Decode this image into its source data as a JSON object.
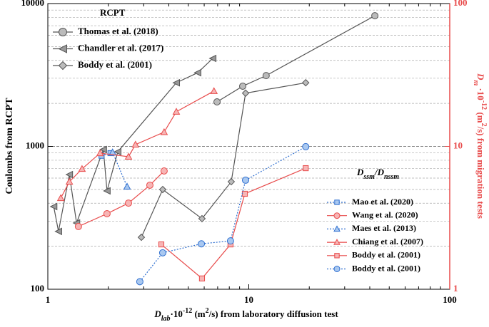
{
  "chart_data": {
    "type": "line",
    "log_x": true,
    "log_y": true,
    "grid": true,
    "xlim": [
      1,
      100
    ],
    "xticks": [
      1,
      10,
      100
    ],
    "ylim": [
      100,
      10000
    ],
    "yticks": [
      100,
      1000,
      10000
    ],
    "y2lim": [
      1,
      100
    ],
    "y2ticks": [
      1,
      10,
      100
    ],
    "xlabel_parts": [
      {
        "text": "D",
        "style": "italic"
      },
      {
        "text": "lab",
        "style": "sub"
      },
      {
        "text": "·10",
        "style": "normal"
      },
      {
        "text": "-12",
        "style": "sup"
      },
      {
        "text": " (m",
        "style": "normal"
      },
      {
        "text": "2",
        "style": "sup"
      },
      {
        "text": "/s) from laboratory diffusion test",
        "style": "normal"
      }
    ],
    "ylabel": "Coulombs from RCPT",
    "y2label_parts": [
      {
        "text": "D",
        "style": "italic"
      },
      {
        "text": "m",
        "style": "sub"
      },
      {
        "text": " ·10",
        "style": "normal"
      },
      {
        "text": "-12",
        "style": "sup"
      },
      {
        "text": " (m",
        "style": "normal"
      },
      {
        "text": "2",
        "style": "sup"
      },
      {
        "text": "/s) from migration tests",
        "style": "normal"
      }
    ],
    "legend1_title": "RCPT",
    "legend2_title_parts": [
      {
        "text": "D",
        "style": "italic"
      },
      {
        "text": "ssm",
        "style": "sub"
      },
      {
        "text": "/D",
        "style": "italic"
      },
      {
        "text": "nssm",
        "style": "sub"
      }
    ],
    "series": [
      {
        "name": "Thomas et al. (2018)",
        "legend": 1,
        "color": "#555555",
        "marker_fill": "#bbbbbb",
        "marker": "circle",
        "dash": "solid",
        "x": [
          6.95,
          9.33,
          12.2,
          42.4
        ],
        "y": [
          2050,
          2640,
          3130,
          8220
        ]
      },
      {
        "name": "Chandler et al. (2017)",
        "legend": 1,
        "color": "#555555",
        "marker_fill": "#999999",
        "marker": "triangle-left",
        "dash": "solid",
        "x": [
          1.07,
          1.13,
          1.28,
          1.39,
          1.89,
          1.97,
          2.23,
          4.36,
          5.57,
          6.62
        ],
        "y": [
          379,
          254,
          635,
          291,
          951,
          488,
          918,
          2790,
          3280,
          4130
        ]
      },
      {
        "name": "Boddy et al. (2001)",
        "legend": 1,
        "color": "#555555",
        "marker_fill": "#bbbbbb",
        "marker": "diamond",
        "dash": "solid",
        "x": [
          2.92,
          3.73,
          5.85,
          8.18,
          9.64,
          19.2
        ],
        "y": [
          231,
          499,
          312,
          566,
          2360,
          2790
        ]
      },
      {
        "name": "Mao et al. (2020)",
        "legend": 2,
        "axis": "y2",
        "color": "#2f6fd0",
        "marker_fill": "#a9c8f0",
        "marker": "square",
        "dash": "dotted",
        "x": [
          1.85,
          2.05
        ],
        "y": [
          8.6,
          8.97
        ]
      },
      {
        "name": "Wang et al. (2020)",
        "legend": 2,
        "axis": "y2",
        "color": "#e84c4c",
        "marker_fill": "#f7b5b5",
        "marker": "circle",
        "dash": "solid",
        "x": [
          1.42,
          1.97,
          2.52,
          3.22,
          3.79
        ],
        "y": [
          2.75,
          3.38,
          4.01,
          5.35,
          6.73
        ]
      },
      {
        "name": "Maes et al. (2013)",
        "legend": 2,
        "axis": "y2",
        "color": "#2f6fd0",
        "marker_fill": "#a9c8f0",
        "marker": "triangle-up",
        "dash": "dotted",
        "x": [
          2.1,
          2.48
        ],
        "y": [
          9.1,
          5.23
        ]
      },
      {
        "name": "Chiang et al. (2007)",
        "legend": 2,
        "axis": "y2",
        "color": "#e84c4c",
        "marker_fill": "#f7b5b5",
        "marker": "triangle-up",
        "dash": "solid",
        "x": [
          1.16,
          1.28,
          1.48,
          1.82,
          2.52,
          2.73,
          3.79,
          4.36,
          6.71
        ],
        "y": [
          4.35,
          5.66,
          6.96,
          8.97,
          8.47,
          10.3,
          12.6,
          17.5,
          24.4
        ]
      },
      {
        "name": "Boddy et al. (2001)",
        "legend": 2,
        "axis": "y2",
        "color": "#e84c4c",
        "marker_fill": "#f7b5b5",
        "marker": "square",
        "dash": "solid",
        "x": [
          3.67,
          5.85,
          8.11,
          9.56,
          19.2
        ],
        "y": [
          2.06,
          1.19,
          2.06,
          4.66,
          7.04
        ]
      },
      {
        "name": "Boddy et al. (2001)",
        "legend": 2,
        "axis": "y2",
        "color": "#2f6fd0",
        "marker_fill": "#a9c8f0",
        "marker": "circle",
        "dash": "dotted",
        "x": [
          2.87,
          3.73,
          5.81,
          8.11,
          9.64,
          19.2
        ],
        "y": [
          1.13,
          1.8,
          2.08,
          2.18,
          5.8,
          9.95
        ]
      }
    ]
  }
}
